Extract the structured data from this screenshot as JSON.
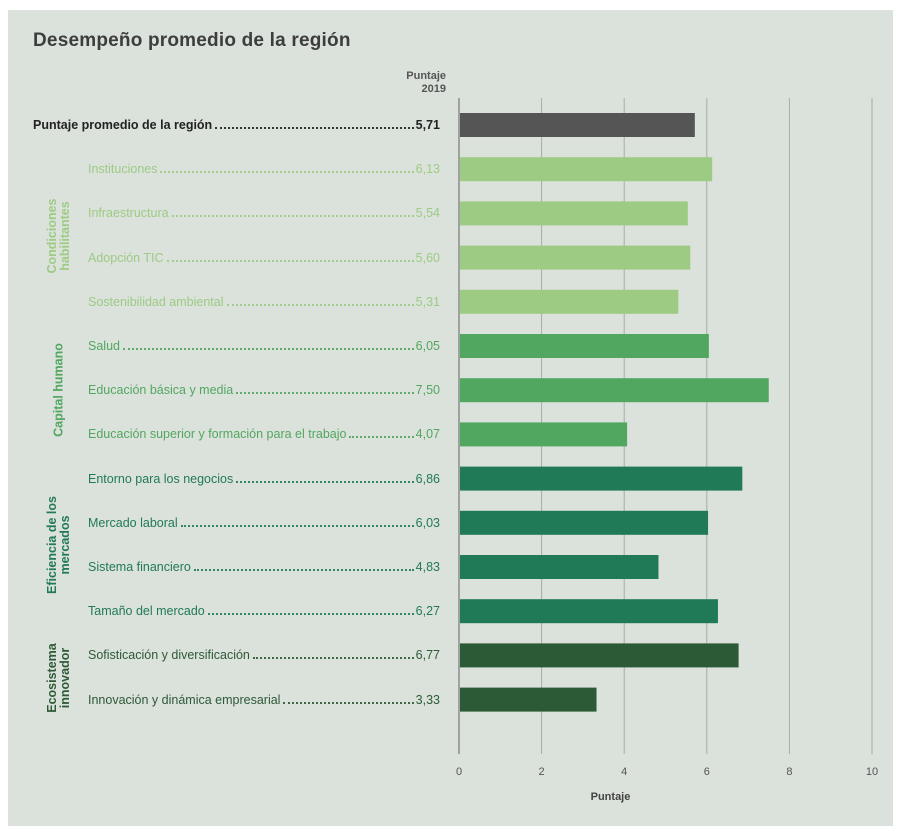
{
  "chart_data": {
    "type": "bar",
    "orientation": "horizontal",
    "title": "Desempeño promedio de la región",
    "value_column_label": [
      "Puntaje",
      "2019"
    ],
    "xlabel": "Puntaje",
    "xlim": [
      0,
      10
    ],
    "xticks": [
      "0",
      "2",
      "4",
      "6",
      "8",
      "10"
    ],
    "grid": true,
    "categories": [
      "Puntaje promedio de la región",
      "Instituciones",
      "Infraestructura",
      "Adopción TIC",
      "Sostenibilidad ambiental",
      "Salud",
      "Educación básica y media",
      "Educación superior y formación para el trabajo",
      "Entorno para los negocios",
      "Mercado laboral",
      "Sistema financiero",
      "Tamaño del mercado",
      "Sofisticación y diversificación",
      "Innovación y dinámica empresarial"
    ],
    "values": [
      5.71,
      6.13,
      5.54,
      5.6,
      5.31,
      6.05,
      7.5,
      4.07,
      6.86,
      6.03,
      4.83,
      6.27,
      6.77,
      3.33
    ],
    "value_labels": [
      "5,71",
      "6,13",
      "5,54",
      "5,60",
      "5,31",
      "6,05",
      "7,50",
      "4,07",
      "6,86",
      "6,03",
      "4,83",
      "6,27",
      "6,77",
      "3,33"
    ],
    "groups": [
      {
        "name": "Condiciones habilitantes",
        "lines": [
          "Condiciones",
          "habilitantes"
        ],
        "start": 1,
        "end": 4,
        "color": "#9dcb84"
      },
      {
        "name": "Capital humano",
        "lines": [
          "Capital humano"
        ],
        "start": 5,
        "end": 7,
        "color": "#52a760"
      },
      {
        "name": "Eficiencia de los mercados",
        "lines": [
          "Eficiencia de los",
          "mercados"
        ],
        "start": 8,
        "end": 11,
        "color": "#217a57"
      },
      {
        "name": "Ecosistema innovador",
        "lines": [
          "Ecosistema",
          "innovador"
        ],
        "start": 12,
        "end": 13,
        "color": "#2d5a36"
      }
    ],
    "overall_color": "#555555"
  }
}
